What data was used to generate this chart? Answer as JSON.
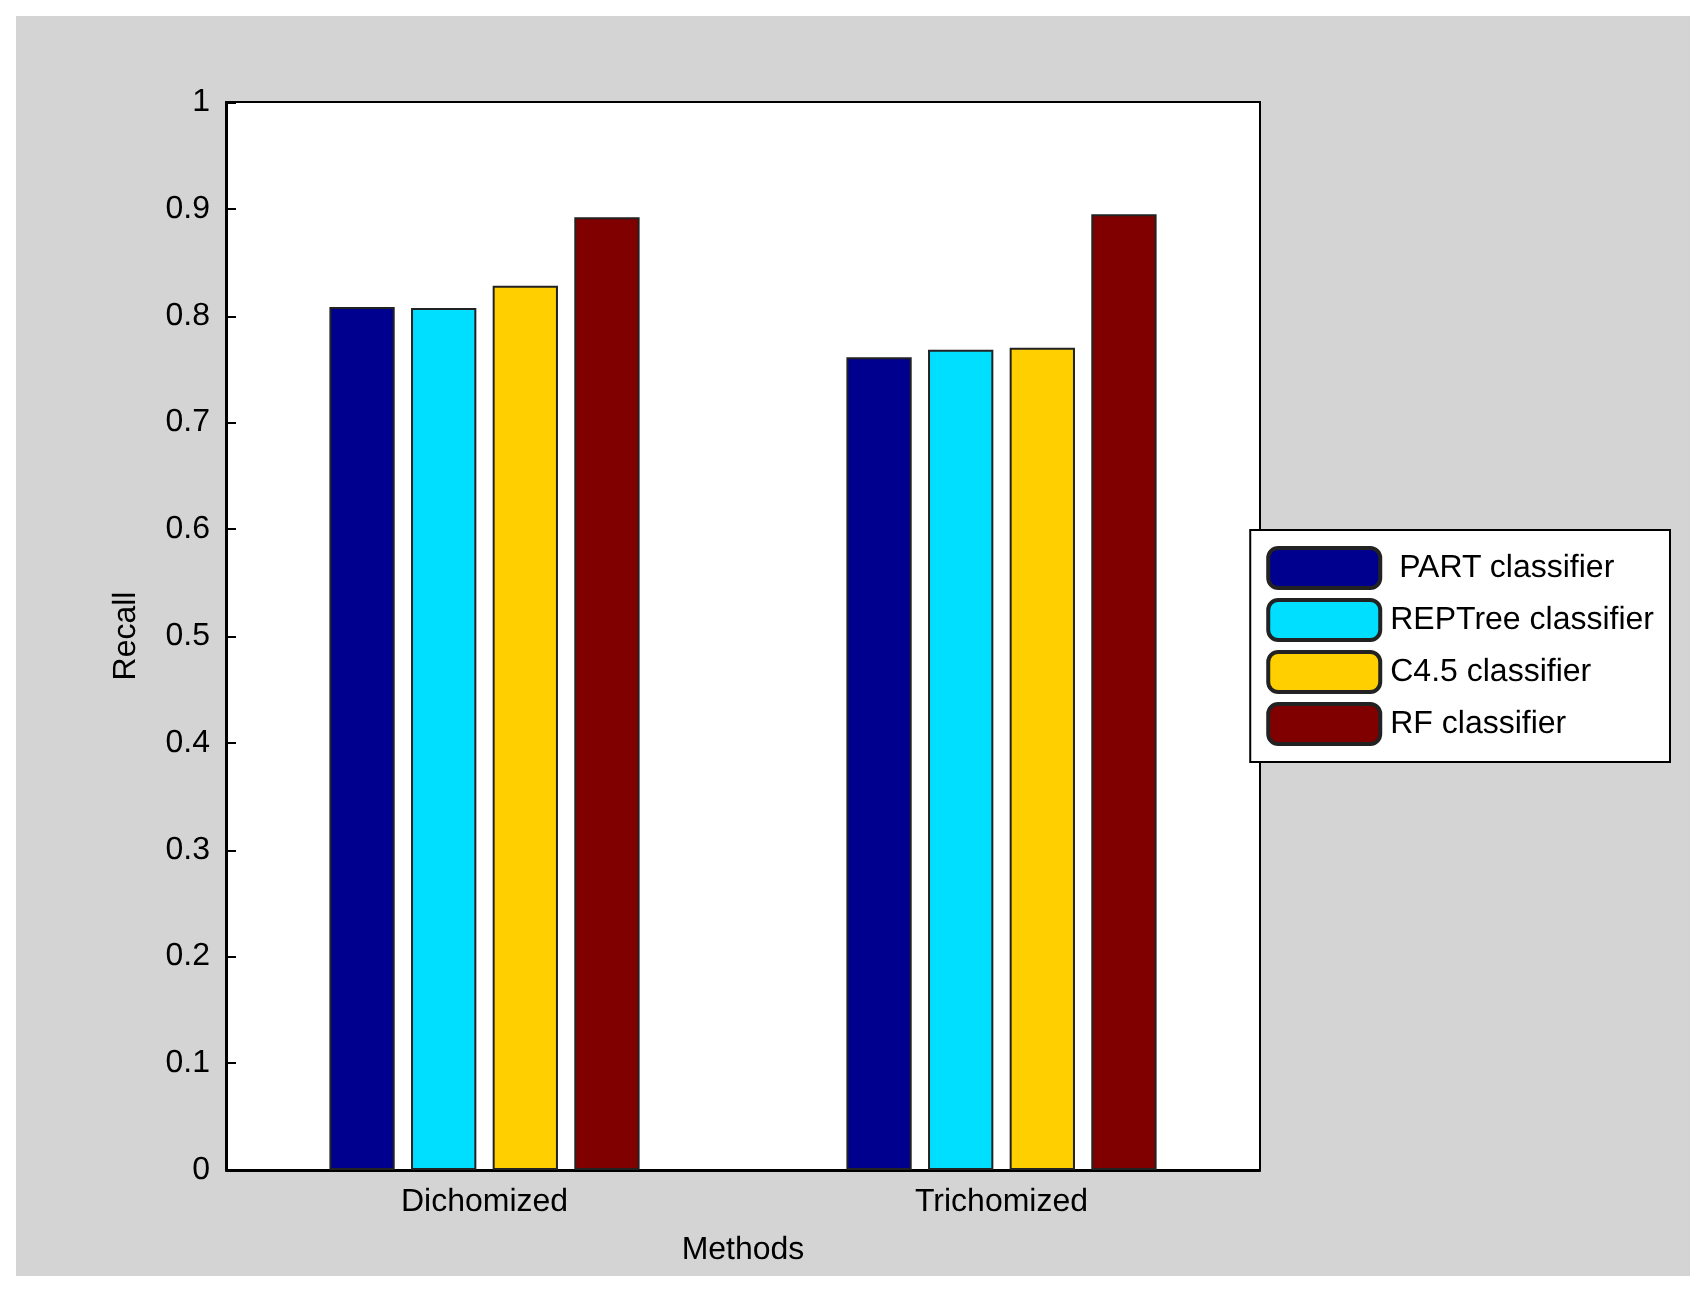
{
  "chart_data": {
    "type": "bar",
    "xlabel": "Methods",
    "ylabel": "Recall",
    "categories": [
      "Dichomized",
      "Trichomized"
    ],
    "series": [
      {
        "name": " PART classifier",
        "color": "#00008f",
        "values": [
          0.808,
          0.761
        ]
      },
      {
        "name": "REPTree classifier",
        "color": "#00dfff",
        "values": [
          0.807,
          0.768
        ]
      },
      {
        "name": "C4.5 classifier",
        "color": "#ffcf00",
        "values": [
          0.828,
          0.77
        ]
      },
      {
        "name": "RF classifier",
        "color": "#800000",
        "values": [
          0.892,
          0.895
        ]
      }
    ],
    "ylim": [
      0,
      1
    ],
    "yticks": [
      0,
      0.1,
      0.2,
      0.3,
      0.4,
      0.5,
      0.6,
      0.7,
      0.8,
      0.9,
      1
    ],
    "grid": false,
    "legend": "right"
  }
}
